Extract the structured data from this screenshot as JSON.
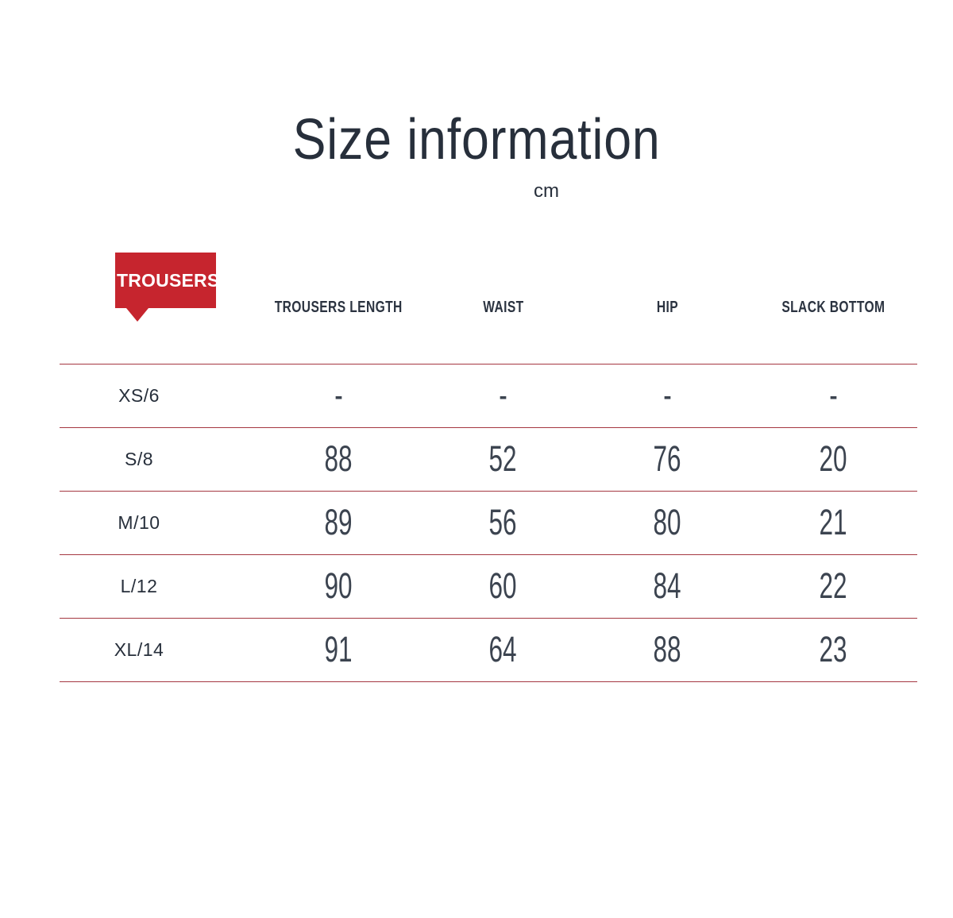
{
  "page": {
    "title": "Size information",
    "unit": "cm"
  },
  "badge": {
    "label": "TROUSERS"
  },
  "table": {
    "columns": [
      "TROUSERS LENGTH",
      "WAIST",
      "HIP",
      "SLACK BOTTOM"
    ],
    "rows": [
      {
        "size": "XS/6",
        "values": [
          "-",
          "-",
          "-",
          "-"
        ]
      },
      {
        "size": "S/8",
        "values": [
          "88",
          "52",
          "76",
          "20"
        ]
      },
      {
        "size": "M/10",
        "values": [
          "89",
          "56",
          "80",
          "21"
        ]
      },
      {
        "size": "L/12",
        "values": [
          "90",
          "60",
          "84",
          "22"
        ]
      },
      {
        "size": "XL/14",
        "values": [
          "91",
          "64",
          "88",
          "23"
        ]
      }
    ]
  },
  "colors": {
    "accent_red": "#c6252e",
    "line_red": "#a53741",
    "text_dark": "#272f3b",
    "number_text": "#3c4450"
  }
}
